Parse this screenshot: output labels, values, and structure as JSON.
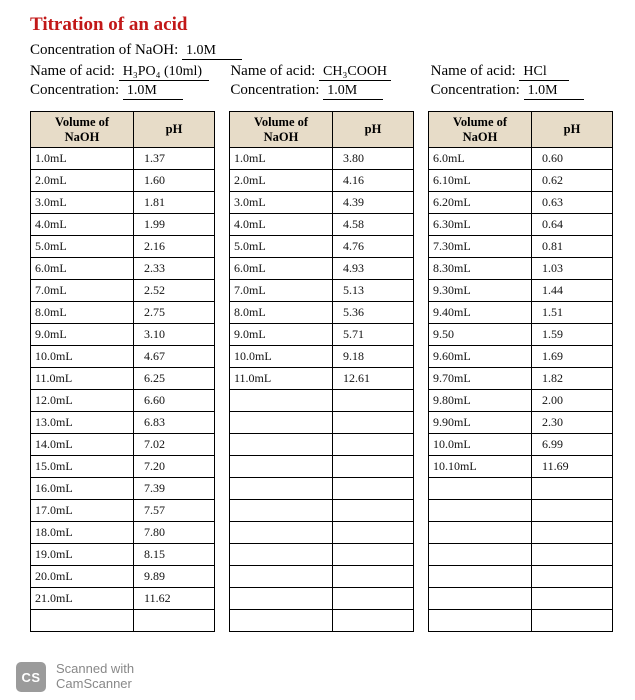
{
  "title": "Titration of an acid",
  "naoh_conc_label": "Concentration of NaOH:",
  "naoh_conc_value": "1.0M",
  "acid_label": "Name of acid:",
  "conc_label": "Concentration:",
  "acids": [
    {
      "name": "H₃PO₄ (10ml)",
      "conc": "1.0M"
    },
    {
      "name": "CH₃COOH",
      "conc": "1.0M"
    },
    {
      "name": "HCl",
      "conc": "1.0M"
    }
  ],
  "headers": {
    "vol": "Volume of NaOH",
    "ph": "pH"
  },
  "row_count": 22,
  "tables": [
    {
      "rows": [
        [
          "1.0mL",
          "1.37"
        ],
        [
          "2.0mL",
          "1.60"
        ],
        [
          "3.0mL",
          "1.81"
        ],
        [
          "4.0mL",
          "1.99"
        ],
        [
          "5.0mL",
          "2.16"
        ],
        [
          "6.0mL",
          "2.33"
        ],
        [
          "7.0mL",
          "2.52"
        ],
        [
          "8.0mL",
          "2.75"
        ],
        [
          "9.0mL",
          "3.10"
        ],
        [
          "10.0mL",
          "4.67"
        ],
        [
          "11.0mL",
          "6.25"
        ],
        [
          "12.0mL",
          "6.60"
        ],
        [
          "13.0mL",
          "6.83"
        ],
        [
          "14.0mL",
          "7.02"
        ],
        [
          "15.0mL",
          "7.20"
        ],
        [
          "16.0mL",
          "7.39"
        ],
        [
          "17.0mL",
          "7.57"
        ],
        [
          "18.0mL",
          "7.80"
        ],
        [
          "19.0mL",
          "8.15"
        ],
        [
          "20.0mL",
          "9.89"
        ],
        [
          "21.0mL",
          "11.62"
        ]
      ]
    },
    {
      "rows": [
        [
          "1.0mL",
          "3.80"
        ],
        [
          "2.0mL",
          "4.16"
        ],
        [
          "3.0mL",
          "4.39"
        ],
        [
          "4.0mL",
          "4.58"
        ],
        [
          "5.0mL",
          "4.76"
        ],
        [
          "6.0mL",
          "4.93"
        ],
        [
          "7.0mL",
          "5.13"
        ],
        [
          "8.0mL",
          "5.36"
        ],
        [
          "9.0mL",
          "5.71"
        ],
        [
          "10.0mL",
          "9.18"
        ],
        [
          "11.0mL",
          "12.61"
        ]
      ]
    },
    {
      "rows": [
        [
          "6.0mL",
          "0.60"
        ],
        [
          "6.10mL",
          "0.62"
        ],
        [
          "6.20mL",
          "0.63"
        ],
        [
          "6.30mL",
          "0.64"
        ],
        [
          "7.30mL",
          "0.81"
        ],
        [
          "8.30mL",
          "1.03"
        ],
        [
          "9.30mL",
          "1.44"
        ],
        [
          "9.40mL",
          "1.51"
        ],
        [
          "9.50",
          "1.59"
        ],
        [
          "9.60mL",
          "1.69"
        ],
        [
          "9.70mL",
          "1.82"
        ],
        [
          "9.80mL",
          "2.00"
        ],
        [
          "9.90mL",
          "2.30"
        ],
        [
          "10.0mL",
          "6.99"
        ],
        [
          "10.10mL",
          "11.69"
        ]
      ]
    }
  ],
  "footer": {
    "badge": "CS",
    "line1": "Scanned with",
    "line2": "CamScanner"
  },
  "colors": {
    "title": "#c21818",
    "header_bg": "#e7dcc8",
    "border": "#000000",
    "handwriting": "#111111",
    "footer": "#888888",
    "badge_bg": "#9b9b9b"
  }
}
